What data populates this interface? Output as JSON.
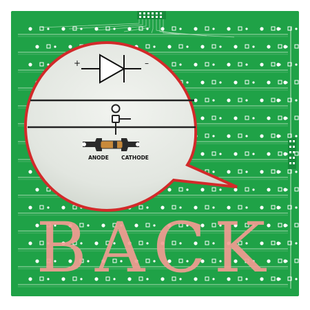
{
  "diagram": {
    "symbol": {
      "plus_label": "+",
      "minus_label": "–"
    },
    "labels": {
      "anode": "ANODE",
      "cathode": "CATHODE"
    },
    "side_text": "BACK"
  },
  "colors": {
    "board": "#1fa247",
    "trace": "#cfe9d0",
    "via": "#ffffff",
    "bubble_fill": "#e4e8e2",
    "bubble_border": "#d22a2a",
    "back_text": "#f29b92",
    "diode_band": "#e07a21"
  }
}
